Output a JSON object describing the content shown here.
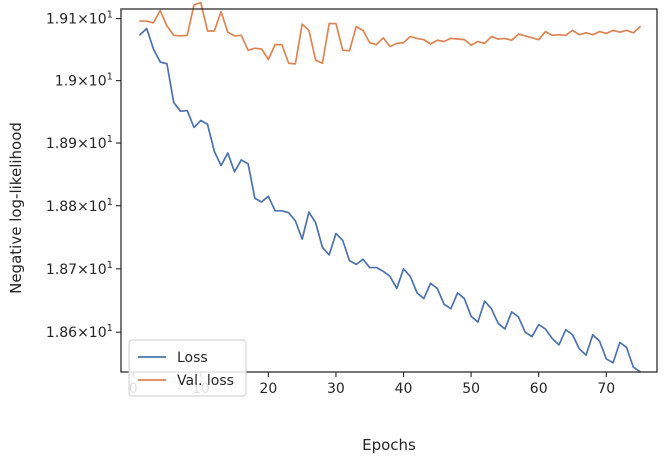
{
  "chart_data": {
    "type": "line",
    "xlabel": "Epochs",
    "ylabel": "Negative log-likelihood",
    "xlim": [
      -1.8,
      77.5
    ],
    "ylim": [
      18.5375,
      19.1155
    ],
    "x_ticks": [
      {
        "value": 0,
        "label": "0"
      },
      {
        "value": 10,
        "label": "10"
      },
      {
        "value": 20,
        "label": "20"
      },
      {
        "value": 30,
        "label": "30"
      },
      {
        "value": 40,
        "label": "40"
      },
      {
        "value": 50,
        "label": "50"
      },
      {
        "value": 60,
        "label": "60"
      },
      {
        "value": 70,
        "label": "70"
      }
    ],
    "y_ticks": [
      {
        "value": 18.6,
        "mantissa": "1.86",
        "times": "×",
        "base": "10",
        "exponent": "1"
      },
      {
        "value": 18.7,
        "mantissa": "1.87",
        "times": "×",
        "base": "10",
        "exponent": "1"
      },
      {
        "value": 18.8,
        "mantissa": "1.88",
        "times": "×",
        "base": "10",
        "exponent": "1"
      },
      {
        "value": 18.9,
        "mantissa": "1.89",
        "times": "×",
        "base": "10",
        "exponent": "1"
      },
      {
        "value": 19.0,
        "mantissa": "1.9",
        "times": "×",
        "base": "10",
        "exponent": "1"
      },
      {
        "value": 19.1,
        "mantissa": "1.91",
        "times": "×",
        "base": "10",
        "exponent": "1"
      }
    ],
    "y_scale": "log",
    "grid": false,
    "legend_position": "lower-left",
    "x": [
      1,
      2,
      3,
      4,
      5,
      6,
      7,
      8,
      9,
      10,
      11,
      12,
      13,
      14,
      15,
      16,
      17,
      18,
      19,
      20,
      21,
      22,
      23,
      24,
      25,
      26,
      27,
      28,
      29,
      30,
      31,
      32,
      33,
      34,
      35,
      36,
      37,
      38,
      39,
      40,
      41,
      42,
      43,
      44,
      45,
      46,
      47,
      48,
      49,
      50,
      51,
      52,
      53,
      54,
      55,
      56,
      57,
      58,
      59,
      60,
      61,
      62,
      63,
      64,
      65,
      66,
      67,
      68,
      69,
      70,
      71,
      72,
      73,
      74,
      75
    ],
    "series": [
      {
        "name": "Loss",
        "color": "#4c72b0",
        "values": [
          19.074,
          19.084,
          19.051,
          19.03,
          19.027,
          18.965,
          18.951,
          18.952,
          18.925,
          18.936,
          18.93,
          18.887,
          18.864,
          18.884,
          18.854,
          18.873,
          18.867,
          18.812,
          18.806,
          18.815,
          18.792,
          18.792,
          18.789,
          18.776,
          18.747,
          18.79,
          18.773,
          18.734,
          18.722,
          18.756,
          18.745,
          18.713,
          18.707,
          18.715,
          18.702,
          18.702,
          18.696,
          18.688,
          18.669,
          18.7,
          18.688,
          18.662,
          18.653,
          18.677,
          18.669,
          18.644,
          18.637,
          18.662,
          18.653,
          18.625,
          18.616,
          18.649,
          18.637,
          18.614,
          18.605,
          18.632,
          18.624,
          18.6,
          18.593,
          18.612,
          18.605,
          18.59,
          18.58,
          18.604,
          18.596,
          18.574,
          18.564,
          18.596,
          18.586,
          18.558,
          18.552,
          18.584,
          18.576,
          18.545,
          18.538
        ]
      },
      {
        "name": "Val. loss",
        "color": "#dd8452",
        "values": [
          19.096,
          19.096,
          19.093,
          19.113,
          19.088,
          19.073,
          19.072,
          19.073,
          19.122,
          19.126,
          19.08,
          19.08,
          19.111,
          19.078,
          19.072,
          19.073,
          19.049,
          19.052,
          19.051,
          19.034,
          19.058,
          19.058,
          19.028,
          19.027,
          19.091,
          19.081,
          19.033,
          19.028,
          19.092,
          19.092,
          19.049,
          19.048,
          19.087,
          19.081,
          19.061,
          19.058,
          19.069,
          19.055,
          19.06,
          19.061,
          19.071,
          19.068,
          19.066,
          19.059,
          19.065,
          19.063,
          19.068,
          19.067,
          19.066,
          19.057,
          19.063,
          19.06,
          19.071,
          19.067,
          19.068,
          19.065,
          19.075,
          19.072,
          19.069,
          19.066,
          19.079,
          19.073,
          19.074,
          19.073,
          19.081,
          19.074,
          19.077,
          19.074,
          19.079,
          19.076,
          19.081,
          19.078,
          19.081,
          19.077,
          19.087
        ]
      }
    ]
  }
}
